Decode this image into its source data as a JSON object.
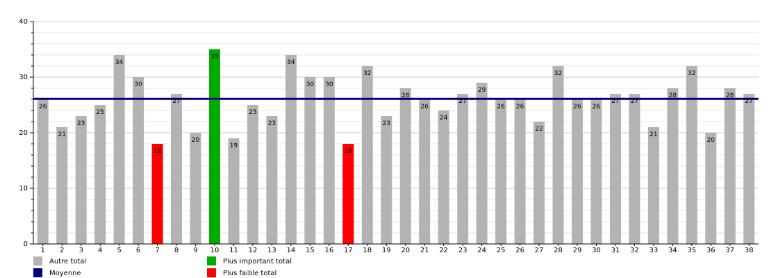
{
  "chart_data": {
    "type": "bar",
    "categories": [
      "1",
      "2",
      "3",
      "4",
      "5",
      "6",
      "7",
      "8",
      "9",
      "10",
      "11",
      "12",
      "13",
      "14",
      "15",
      "16",
      "17",
      "18",
      "19",
      "20",
      "21",
      "22",
      "23",
      "24",
      "25",
      "26",
      "27",
      "28",
      "29",
      "30",
      "31",
      "32",
      "33",
      "34",
      "35",
      "36",
      "37",
      "38"
    ],
    "values": [
      26,
      21,
      23,
      25,
      34,
      30,
      18,
      27,
      20,
      35,
      19,
      25,
      23,
      34,
      30,
      30,
      18,
      32,
      23,
      28,
      26,
      24,
      27,
      29,
      26,
      26,
      22,
      32,
      26,
      26,
      27,
      27,
      21,
      28,
      32,
      20,
      28,
      27
    ],
    "average": 26.1,
    "ylim": [
      0,
      40
    ],
    "yticks": [
      0,
      10,
      20,
      30,
      40
    ],
    "grid": true,
    "legend_position": "bottom-left",
    "colors": {
      "other": "#b3b3b3",
      "max": "#00aa00",
      "min": "#ff0000",
      "average": "#000080"
    },
    "legend": [
      {
        "key": "other",
        "label": "Autre total",
        "color": "#b3b3b3"
      },
      {
        "key": "max",
        "label": "Plus important total",
        "color": "#00aa00"
      },
      {
        "key": "average",
        "label": "Moyenne",
        "color": "#000080"
      },
      {
        "key": "min",
        "label": "Plus faible total",
        "color": "#ff0000"
      }
    ]
  }
}
